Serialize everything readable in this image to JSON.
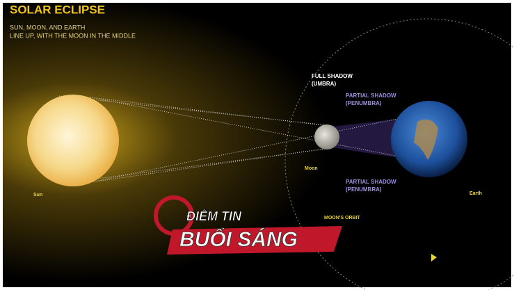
{
  "header": {
    "title": "SOLAR ECLIPSE",
    "subtitle": [
      "SUN, MOON, AND EARTH",
      "LINE UP, WITH THE MOON IN THE MIDDLE"
    ]
  },
  "labels": {
    "umbra": [
      "FULL SHADOW",
      "(UMBRA)"
    ],
    "penumbra_top": [
      "PARTIAL SHADOW",
      "(PENUMBRA)"
    ],
    "penumbra_bottom": [
      "PARTIAL SHADOW",
      "(PENUMBRA)"
    ],
    "sun": "Sun",
    "moon": "Moon",
    "earth": "Earth",
    "orbit": "MOON'S ORBIT"
  },
  "logo": {
    "line1": "ĐIỂM TIN",
    "line2": "BUỔI SÁNG"
  }
}
